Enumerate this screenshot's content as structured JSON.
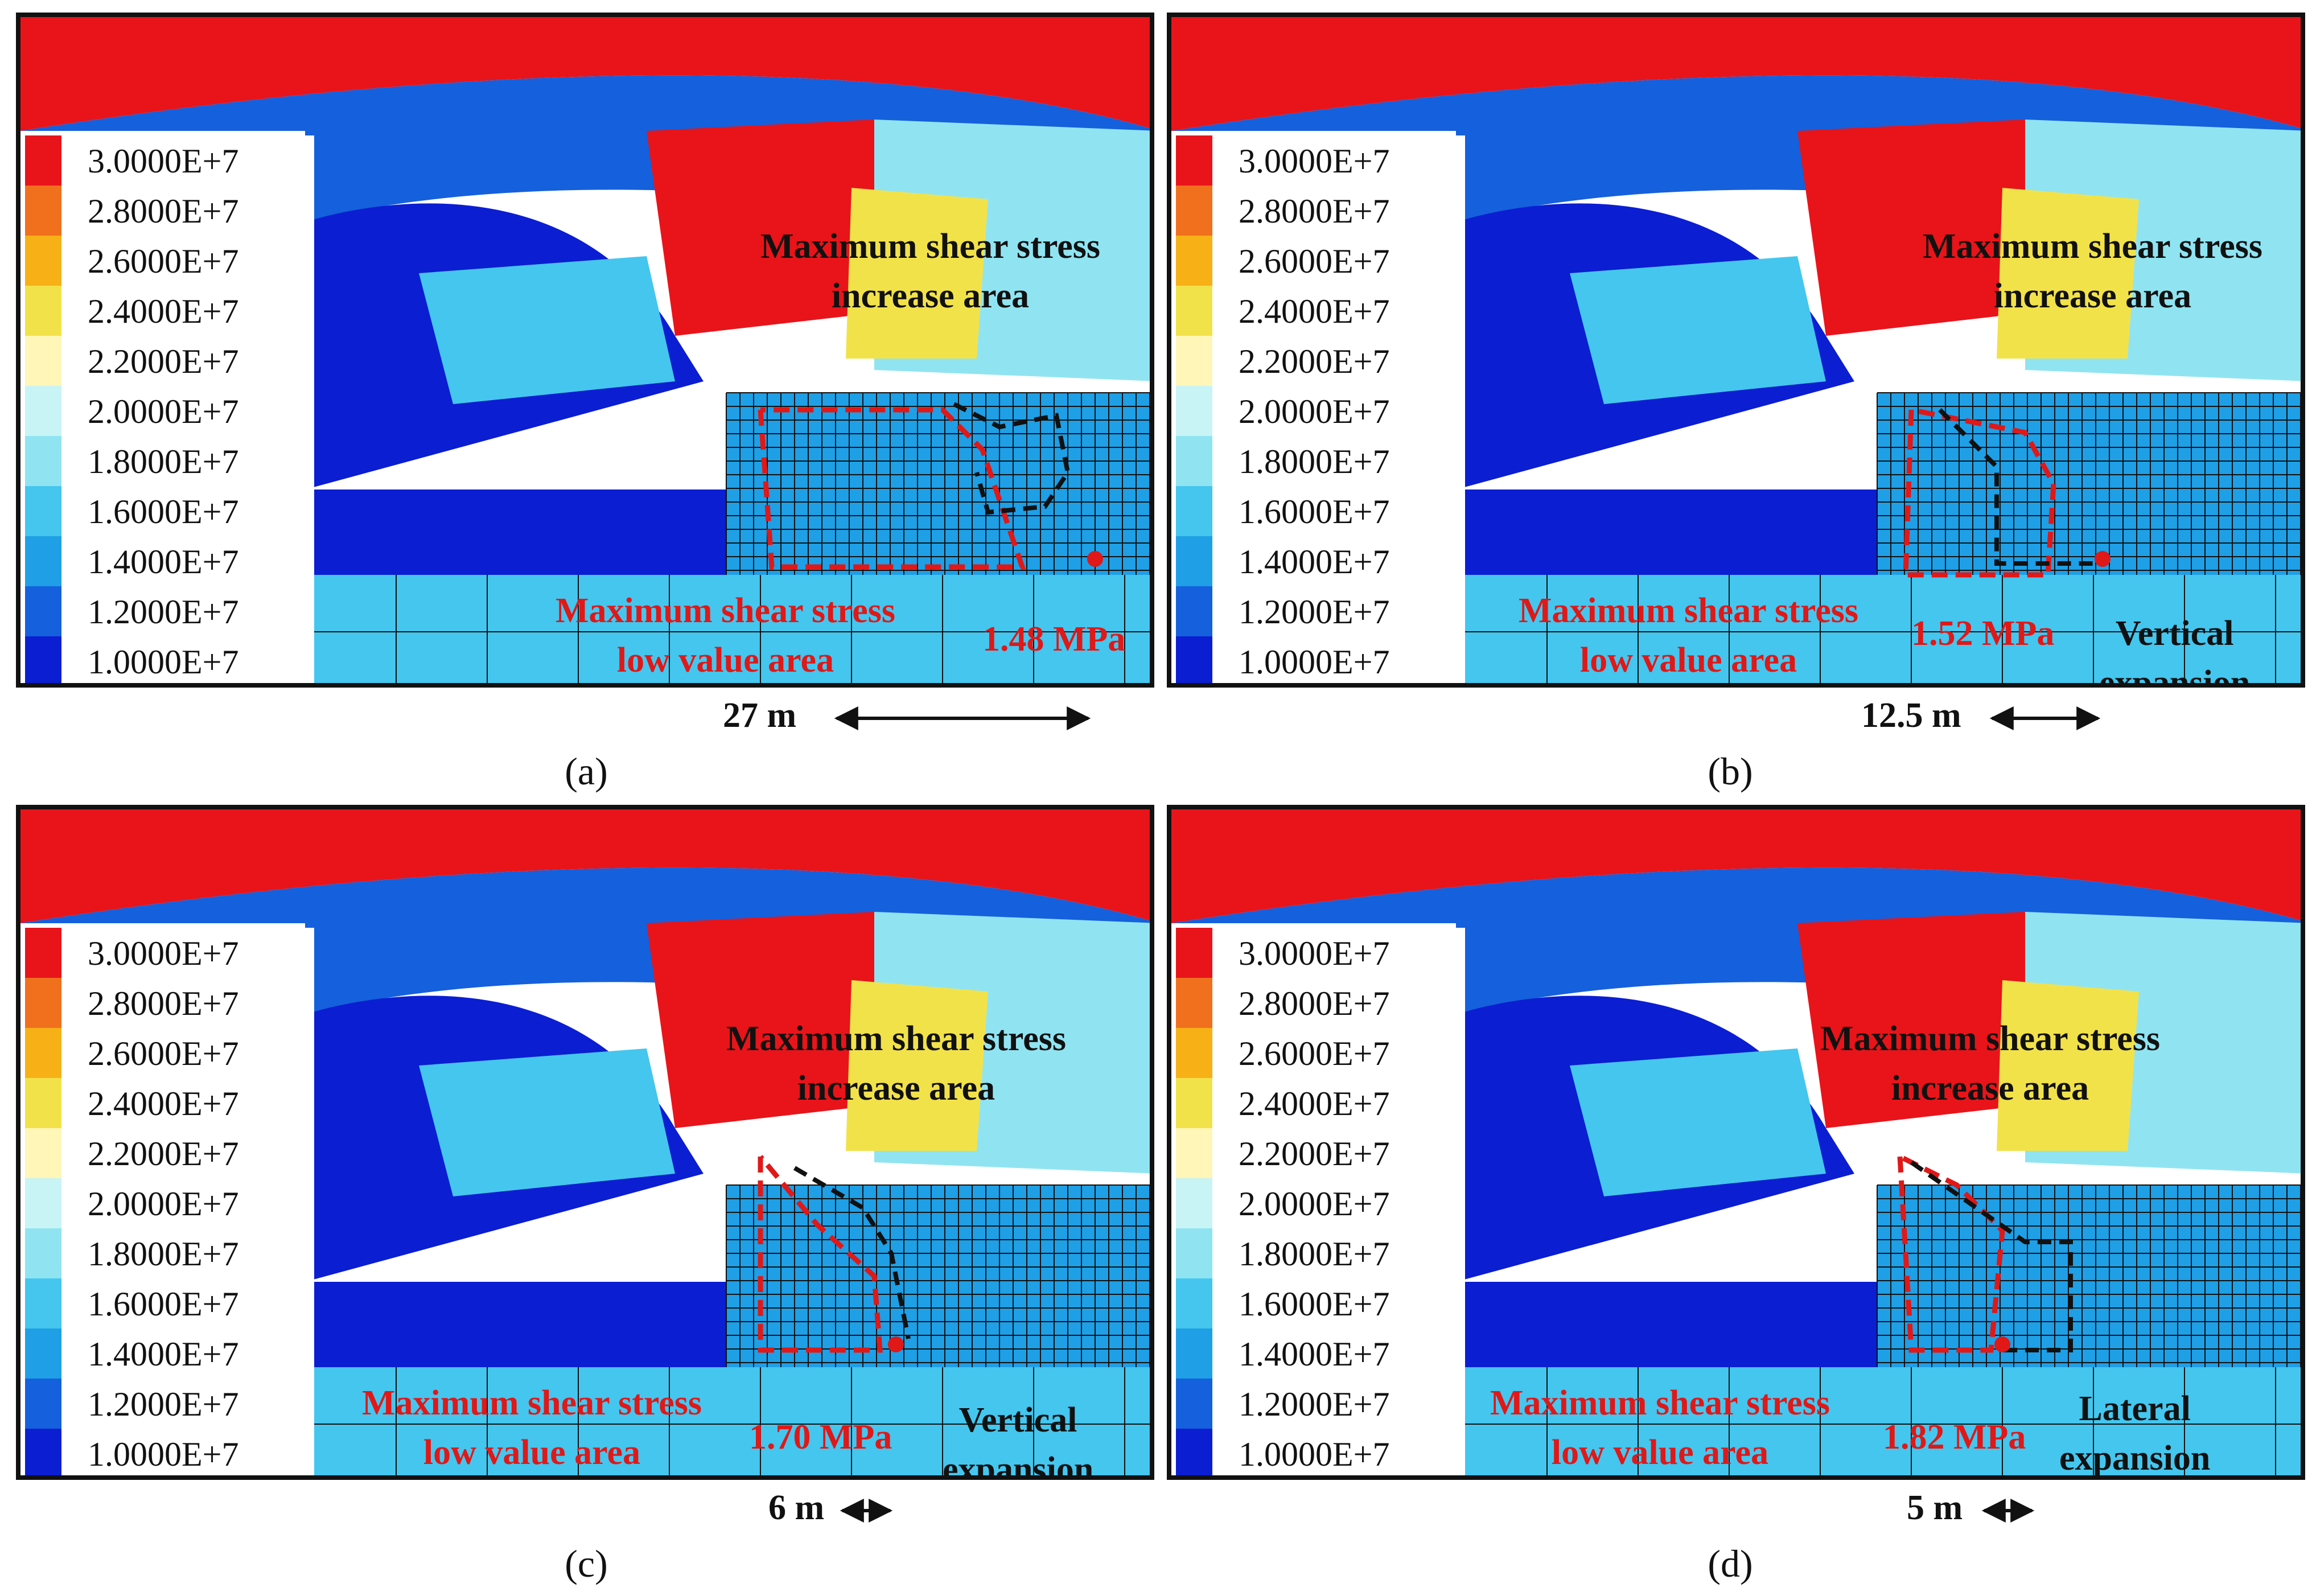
{
  "legend": {
    "labels": [
      "3.0000E+7",
      "2.8000E+7",
      "2.6000E+7",
      "2.4000E+7",
      "2.2000E+7",
      "2.0000E+7",
      "1.8000E+7",
      "1.6000E+7",
      "1.4000E+7",
      "1.2000E+7",
      "1.0000E+7"
    ],
    "colors": [
      "#e8141a",
      "#f0701e",
      "#f7b117",
      "#f2e24a",
      "#fff6b8",
      "#c8f4f6",
      "#90e4f2",
      "#44c6ee",
      "#1e9fe6",
      "#1560dc",
      "#0b1ed2"
    ]
  },
  "panels": {
    "a": {
      "caption": "(a)",
      "increase_label": "Maximum shear stress\nincrease area",
      "low_label": "Maximum shear stress\nlow value area",
      "stress_value": "1.48 MPa",
      "distance": "27 m"
    },
    "b": {
      "caption": "(b)",
      "increase_label": "Maximum shear stress\nincrease area",
      "low_label": "Maximum shear stress\nlow value area",
      "stress_value": "1.52 MPa",
      "distance": "12.5 m",
      "expansion": "Vertical\nexpansion"
    },
    "c": {
      "caption": "(c)",
      "increase_label": "Maximum shear stress\nincrease area",
      "low_label": "Maximum shear stress\nlow value area",
      "stress_value": "1.70 MPa",
      "distance": "6 m",
      "expansion": "Vertical\nexpansion"
    },
    "d": {
      "caption": "(d)",
      "increase_label": "Maximum shear stress\nincrease area",
      "low_label": "Maximum shear stress\nlow value area",
      "stress_value": "1.82 MPa",
      "distance": "5 m",
      "expansion": "Lateral\nexpansion"
    }
  }
}
